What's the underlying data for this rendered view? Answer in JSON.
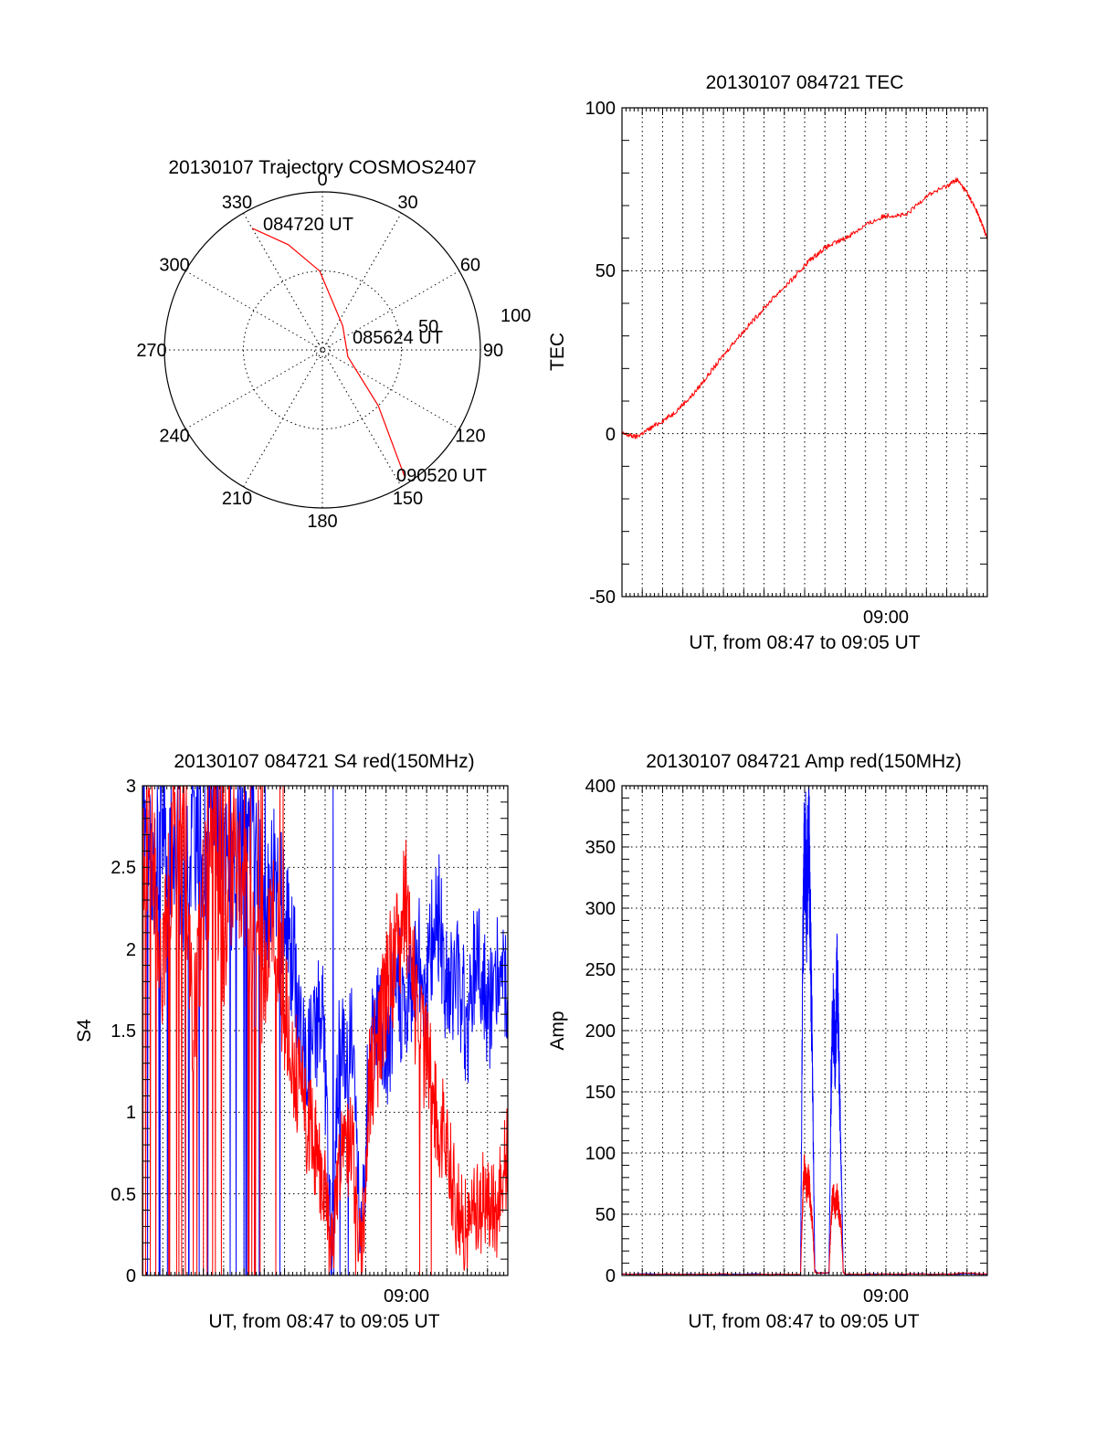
{
  "chart_data": [
    {
      "type": "polar",
      "title": "20130107 Trajectory COSMOS2407",
      "angle_labels": [
        "0",
        "30",
        "60",
        "90",
        "120",
        "150",
        "180",
        "210",
        "240",
        "270",
        "300",
        "330"
      ],
      "radial_labels": [
        "50",
        "100"
      ],
      "grid": true,
      "trajectory": {
        "color": "#ff0000",
        "points": [
          {
            "azimuth": 330,
            "elevation": 10
          },
          {
            "azimuth": 342,
            "elevation": 27
          },
          {
            "azimuth": 358,
            "elevation": 45
          },
          {
            "azimuth": 40,
            "elevation": 72
          },
          {
            "azimuth": 105,
            "elevation": 75
          },
          {
            "azimuth": 135,
            "elevation": 45
          },
          {
            "azimuth": 147,
            "elevation": 4
          }
        ]
      },
      "annotations": [
        {
          "text": "084720 UT",
          "azimuth": 330
        },
        {
          "text": "085624 UT",
          "azimuth": 75
        },
        {
          "text": "090520 UT",
          "azimuth": 147
        }
      ]
    },
    {
      "type": "line",
      "title": "20130107 084721 TEC",
      "xlabel": "UT, from 08:47 to 09:05 UT",
      "ylabel": "TEC",
      "xlim": [
        0,
        18
      ],
      "ylim": [
        -50,
        100
      ],
      "yticks": [
        "100",
        "50",
        "0",
        "-50"
      ],
      "xticks": [
        {
          "value": 13,
          "label": "09:00"
        }
      ],
      "grid": true,
      "series": [
        {
          "color": "#ff0000",
          "x": [
            0,
            0.7,
            1.5,
            2.5,
            3.5,
            4.5,
            5.5,
            6.5,
            7.5,
            8.5,
            9.2,
            10,
            11,
            12,
            13,
            14,
            15,
            16,
            16.5,
            17,
            17.5,
            18
          ],
          "values": [
            0,
            -1,
            2,
            6,
            12,
            20,
            28,
            35,
            42,
            48,
            53,
            57,
            60,
            64,
            67,
            67,
            73,
            76,
            78,
            74,
            68,
            60
          ]
        }
      ]
    },
    {
      "type": "line",
      "title": "20130107 084721 S4 red(150MHz)",
      "xlabel": "UT, from 08:47 to 09:05 UT",
      "ylabel": "S4",
      "xlim": [
        0,
        18
      ],
      "ylim": [
        0,
        3
      ],
      "yticks": [
        "3",
        "2.5",
        "2",
        "1.5",
        "1",
        "0.5",
        "0"
      ],
      "xticks": [
        {
          "value": 13,
          "label": "09:00"
        }
      ],
      "grid": true,
      "series": [
        {
          "color": "#0000ff",
          "x": [
            0,
            0.5,
            1,
            1.5,
            2,
            2.5,
            3,
            3.5,
            4,
            4.5,
            5,
            5.5,
            6,
            6.5,
            7,
            7.5,
            8,
            8.5,
            8.9,
            9.3,
            9.7,
            10.3,
            10.8,
            11.2,
            11.6,
            12,
            12.5,
            13,
            13.5,
            14,
            14.5,
            15,
            15.5,
            16,
            16.5,
            17,
            17.5,
            18
          ],
          "values": [
            2.8,
            2.4,
            2.9,
            2.5,
            2.2,
            2.8,
            2.4,
            2.9,
            2.6,
            2.3,
            2.7,
            2.8,
            2.1,
            2.6,
            2.2,
            1.9,
            1.3,
            1.5,
            1.6,
            0.12,
            1.4,
            1.5,
            0.13,
            1.5,
            1.6,
            1.3,
            1.8,
            1.6,
            2.0,
            1.8,
            2.3,
            1.7,
            1.9,
            1.5,
            2.1,
            1.6,
            1.8,
            1.7
          ]
        },
        {
          "color": "#ff0000",
          "x": [
            0,
            0.5,
            1,
            1.5,
            2,
            2.5,
            3,
            3.5,
            4,
            4.5,
            5,
            5.5,
            6,
            6.5,
            7,
            7.5,
            8,
            8.5,
            8.9,
            9.3,
            9.7,
            10.3,
            10.8,
            11.2,
            11.6,
            12,
            12.5,
            13,
            13.5,
            14,
            14.5,
            15,
            15.5,
            16,
            16.5,
            17,
            17.5,
            18
          ],
          "values": [
            2.4,
            2.6,
            1.9,
            2.7,
            2.8,
            1.5,
            2.3,
            2.7,
            2.0,
            2.6,
            2.4,
            1.9,
            1.8,
            2.2,
            1.6,
            1.3,
            1.0,
            0.8,
            0.6,
            0.1,
            0.7,
            0.8,
            0.1,
            1.2,
            1.4,
            1.7,
            2.0,
            2.3,
            1.6,
            1.3,
            1.0,
            0.8,
            0.4,
            0.3,
            0.4,
            0.5,
            0.4,
            0.8
          ]
        }
      ]
    },
    {
      "type": "line",
      "title": "20130107 084721 Amp red(150MHz)",
      "xlabel": "UT, from 08:47 to 09:05 UT",
      "ylabel": "Amp",
      "xlim": [
        0,
        18
      ],
      "ylim": [
        0,
        400
      ],
      "yticks": [
        "400",
        "350",
        "300",
        "250",
        "200",
        "150",
        "100",
        "50",
        "0"
      ],
      "xticks": [
        {
          "value": 13,
          "label": "09:00"
        }
      ],
      "grid": true,
      "series": [
        {
          "color": "#0000ff",
          "x": [
            0,
            8.8,
            8.9,
            9.0,
            9.1,
            9.2,
            9.3,
            9.4,
            9.5,
            9.6,
            10.2,
            10.3,
            10.4,
            10.5,
            10.6,
            10.7,
            10.8,
            10.9,
            11.0,
            18
          ],
          "values": [
            1,
            1,
            250,
            365,
            310,
            370,
            260,
            150,
            5,
            2,
            2,
            150,
            220,
            180,
            245,
            170,
            90,
            3,
            1,
            1
          ]
        },
        {
          "color": "#ff0000",
          "x": [
            0,
            8.8,
            8.9,
            9.0,
            9.1,
            9.2,
            9.3,
            9.4,
            9.5,
            9.6,
            10.2,
            10.3,
            10.4,
            10.5,
            10.6,
            10.7,
            10.8,
            10.9,
            11.0,
            16,
            17,
            18
          ],
          "values": [
            1,
            1,
            60,
            90,
            70,
            80,
            55,
            40,
            3,
            2,
            2,
            45,
            70,
            55,
            65,
            50,
            40,
            3,
            1,
            1,
            2,
            1
          ]
        }
      ]
    }
  ]
}
